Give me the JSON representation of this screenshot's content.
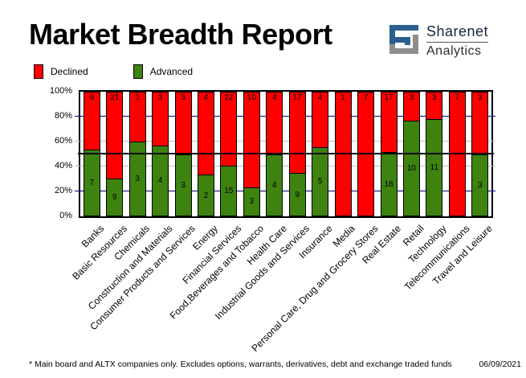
{
  "header": {
    "title": "Market Breadth Report",
    "logo": {
      "line1": "Sharenet",
      "line2": "Analytics",
      "icon_blue": "#2d5f8e",
      "icon_gray": "#8e8e8e"
    }
  },
  "legend": {
    "declined_label": "Declined",
    "advanced_label": "Advanced"
  },
  "chart_data": {
    "type": "bar",
    "stacked": true,
    "percent_stacked": true,
    "title": "Market Breadth Report",
    "categories": [
      "Banks",
      "Basic Resources",
      "Chemicals",
      "Construction and Materials",
      "Consumer Products and Services",
      "Energy",
      "Financial Services",
      "Food,Beverages and Tobacco",
      "Health Care",
      "Industrial Goods and Services",
      "Insurance",
      "Media",
      "Personal Care, Drug and Grocery Stores",
      "Real Estate",
      "Retail",
      "Technology",
      "Telecommunications",
      "Travel and Leisure"
    ],
    "series": [
      {
        "name": "Declined",
        "color": "#ff0000",
        "values": [
          6,
          21,
          2,
          3,
          3,
          4,
          22,
          10,
          4,
          17,
          4,
          1,
          7,
          17,
          3,
          3,
          7,
          3
        ]
      },
      {
        "name": "Advanced",
        "color": "#3e8210",
        "values": [
          7,
          9,
          3,
          4,
          3,
          2,
          15,
          3,
          4,
          9,
          5,
          0,
          0,
          18,
          10,
          11,
          0,
          3
        ]
      }
    ],
    "ylabel": "",
    "xlabel": "",
    "ylim": [
      0,
      100
    ],
    "y_ticks": [
      "0%",
      "20%",
      "40%",
      "60%",
      "80%",
      "100%"
    ],
    "gridlines": {
      "navy_pcts": [
        20,
        80
      ],
      "navy_color": "#000080",
      "silver_pcts": [
        40,
        60
      ],
      "silver_color": "#c0c0c0"
    },
    "reference_line_pct": 50,
    "legend_position": "top-left",
    "legend_entries": [
      "Declined",
      "Advanced"
    ]
  },
  "footer": {
    "note": "* Main board and ALTX companies only. Excludes options, warrants, derivatives, debt and exchange traded funds",
    "date": "06/09/2021"
  }
}
